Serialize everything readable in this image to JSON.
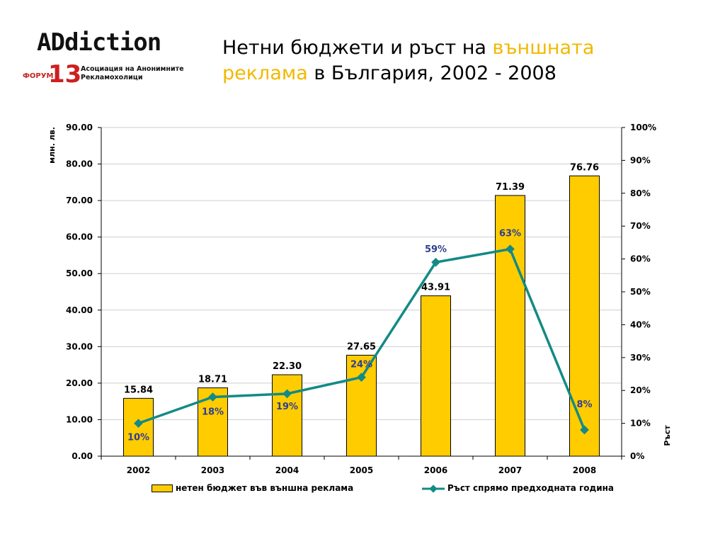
{
  "logo": {
    "word": "ADdiction",
    "forum": "ФОРУМ",
    "number": "13",
    "subtitle_line1": "Асоциация на Анонимните",
    "subtitle_line2": "Рекламохолици"
  },
  "title": {
    "part1": "Нетни бюджети и ръст на ",
    "highlight1": "външната",
    "highlight2": "реклама",
    "part2": " в България, 2002 - 2008"
  },
  "colors": {
    "bar": "#ffcc00",
    "line": "#138a85",
    "growth_label": "#2f3f8f",
    "highlight": "#f2b800"
  },
  "chart_data": {
    "type": "bar",
    "categories": [
      "2002",
      "2003",
      "2004",
      "2005",
      "2006",
      "2007",
      "2008"
    ],
    "series": [
      {
        "name": "нетен бюджет във външна реклама",
        "type": "bar",
        "axis": "left",
        "values": [
          15.84,
          18.71,
          22.3,
          27.65,
          43.91,
          71.39,
          76.76
        ],
        "labels": [
          "15.84",
          "18.71",
          "22.30",
          "27.65",
          "43.91",
          "71.39",
          "76.76"
        ]
      },
      {
        "name": "Ръст спрямо предходната година",
        "type": "line",
        "axis": "right",
        "values": [
          10,
          18,
          19,
          24,
          59,
          63,
          8
        ],
        "labels": [
          "10%",
          "18%",
          "19%",
          "24%",
          "59%",
          "63%",
          "8%"
        ]
      }
    ],
    "ylabel": "млн. лв.",
    "ylabel_right": "Ръст",
    "ylim": [
      0,
      90
    ],
    "ylim_right": [
      0,
      100
    ],
    "yticks": [
      "0.00",
      "10.00",
      "20.00",
      "30.00",
      "40.00",
      "50.00",
      "60.00",
      "70.00",
      "80.00",
      "90.00"
    ],
    "yticks_right": [
      "0%",
      "10%",
      "20%",
      "30%",
      "40%",
      "50%",
      "60%",
      "70%",
      "80%",
      "90%",
      "100%"
    ],
    "grid": true,
    "legend_position": "bottom"
  }
}
